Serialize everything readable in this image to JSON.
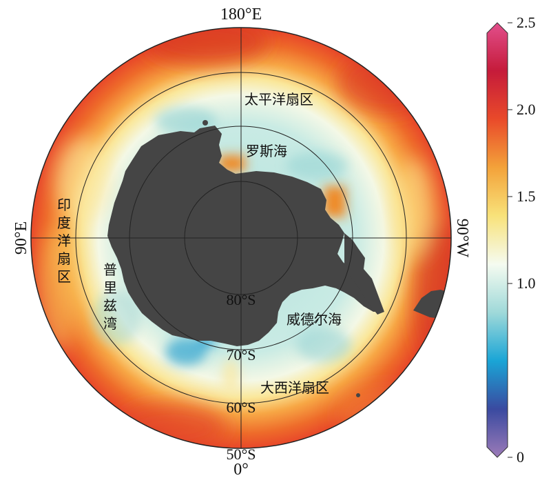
{
  "map": {
    "projection": "south-polar-stereographic",
    "longitude_labels": {
      "top": "180°E",
      "left": "90°E",
      "right": "90°W",
      "bottom": "0°"
    },
    "latitude_labels": [
      "80°S",
      "70°S",
      "60°S",
      "50°S"
    ],
    "region_labels": {
      "pacific": "太平洋扇区",
      "ross": "罗斯海",
      "indian": "印度洋扇区",
      "prydz": "普里兹湾",
      "weddell": "威德尔海",
      "atlantic": "大西洋扇区"
    },
    "colors": {
      "land": "#454545"
    }
  },
  "colorbar": {
    "ticks": [
      "2.5",
      "2.0",
      "1.5",
      "1.0",
      "0"
    ],
    "tick_values": [
      2.5,
      2.0,
      1.5,
      1.0,
      0
    ],
    "min": 0,
    "max": 2.5,
    "colors": [
      "#9c7bb8",
      "#3a4aa0",
      "#1aa5d6",
      "#9fd9d9",
      "#f5fbf0",
      "#f8e27a",
      "#f3a23a",
      "#e94a2a",
      "#c51b3a",
      "#e24f8c"
    ]
  }
}
